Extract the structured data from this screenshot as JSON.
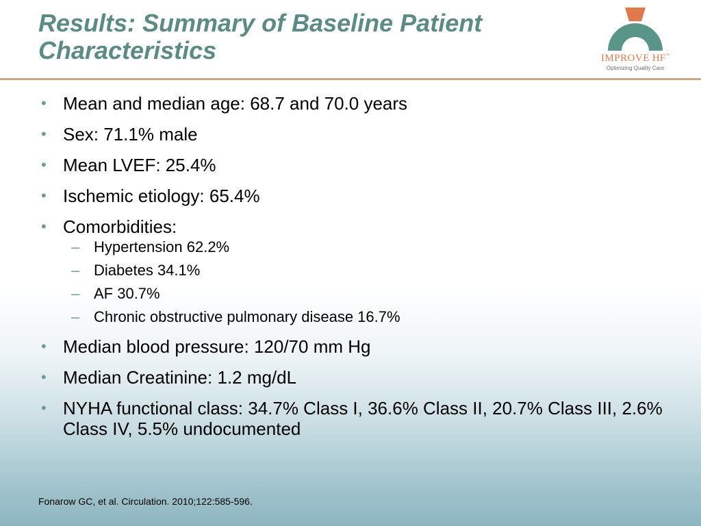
{
  "slide": {
    "title_line1": "Results: Summary of Baseline Patient",
    "title_line2": "Characteristics"
  },
  "logo": {
    "name": "IMPROVE",
    "suffix": "HF",
    "trademark": "™",
    "tagline": "Optimizing Quality Care",
    "colors": {
      "arc": "#5a958a",
      "accent": "#e07a4c"
    }
  },
  "bullets": [
    {
      "text": "Mean and median age: 68.7 and 70.0 years"
    },
    {
      "text": "Sex: 71.1% male"
    },
    {
      "text": "Mean LVEF: 25.4%"
    },
    {
      "text": "Ischemic etiology: 65.4%"
    },
    {
      "text": "Comorbidities:",
      "subitems": [
        "Hypertension 62.2%",
        "Diabetes 34.1%",
        "AF 30.7%",
        "Chronic obstructive pulmonary disease 16.7%"
      ]
    },
    {
      "text": "Median blood pressure: 120/70 mm Hg"
    },
    {
      "text": "Median Creatinine: 1.2 mg/dL"
    },
    {
      "text": "NYHA functional class: 34.7% Class I, 36.6% Class II, 20.7% Class III, 2.6% Class IV, 5.5% undocumented"
    }
  ],
  "bullet_marker": "•",
  "sub_marker": "–",
  "citation": "Fonarow GC, et al. Circulation. 2010;122:585-596.",
  "colors": {
    "title": "#5c8b84",
    "rule": "#c7a88c",
    "bullet_marker": "#6f9c95"
  }
}
